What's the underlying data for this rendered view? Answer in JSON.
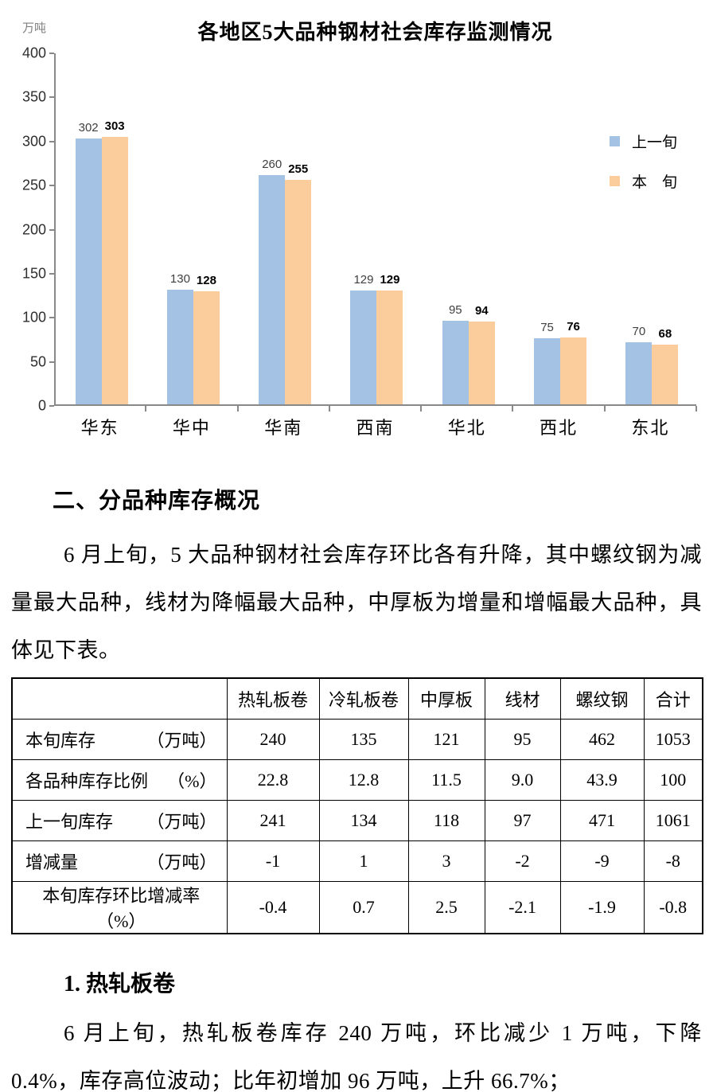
{
  "chart_data": {
    "type": "bar",
    "title": "各地区5大品种钢材社会库存监测情况",
    "ylabel": "万吨",
    "xlabel": "",
    "ylim": [
      0,
      400
    ],
    "ytick_step": 50,
    "grid": false,
    "legend_position": "right",
    "categories": [
      "华东",
      "华中",
      "华南",
      "西南",
      "华北",
      "西北",
      "东北"
    ],
    "series": [
      {
        "name": "上一旬",
        "color": "#a4c2e4",
        "values": [
          302,
          130,
          260,
          129,
          95,
          75,
          70
        ]
      },
      {
        "name": "本旬",
        "color": "#fbcd9c",
        "values": [
          303,
          128,
          255,
          129,
          94,
          76,
          68
        ]
      }
    ],
    "legend_labels": [
      "上一旬",
      "本　旬"
    ]
  },
  "section": {
    "heading": "二、分品种库存概况",
    "paragraph": "6 月上旬，5 大品种钢材社会库存环比各有升降，其中螺纹钢为减量最大品种，线材为降幅最大品种，中厚板为增量和增幅最大品种，具体见下表。"
  },
  "table": {
    "columns": [
      "",
      "热轧板卷",
      "冷轧板卷",
      "中厚板",
      "线材",
      "螺纹钢",
      "合计"
    ],
    "rows": [
      {
        "label": "本旬库存",
        "unit": "（万吨）",
        "values": [
          "240",
          "135",
          "121",
          "95",
          "462",
          "1053"
        ]
      },
      {
        "label": "各品种库存比例",
        "unit": "（%）",
        "values": [
          "22.8",
          "12.8",
          "11.5",
          "9.0",
          "43.9",
          "100"
        ]
      },
      {
        "label": "上一旬库存",
        "unit": "（万吨）",
        "values": [
          "241",
          "134",
          "118",
          "97",
          "471",
          "1061"
        ]
      },
      {
        "label": "增减量",
        "unit": "（万吨）",
        "values": [
          "-1",
          "1",
          "3",
          "-2",
          "-9",
          "-8"
        ]
      },
      {
        "label": "本旬库存环比增减率（%）",
        "unit": "",
        "values": [
          "-0.4",
          "0.7",
          "2.5",
          "-2.1",
          "-1.9",
          "-0.8"
        ]
      }
    ]
  },
  "subsection": {
    "heading": "1. 热轧板卷",
    "paragraph": "6 月上旬，热轧板卷库存 240 万吨，环比减少 1 万吨，下降 0.4%，库存高位波动；比年初增加 96 万吨，上升 66.7%；"
  }
}
